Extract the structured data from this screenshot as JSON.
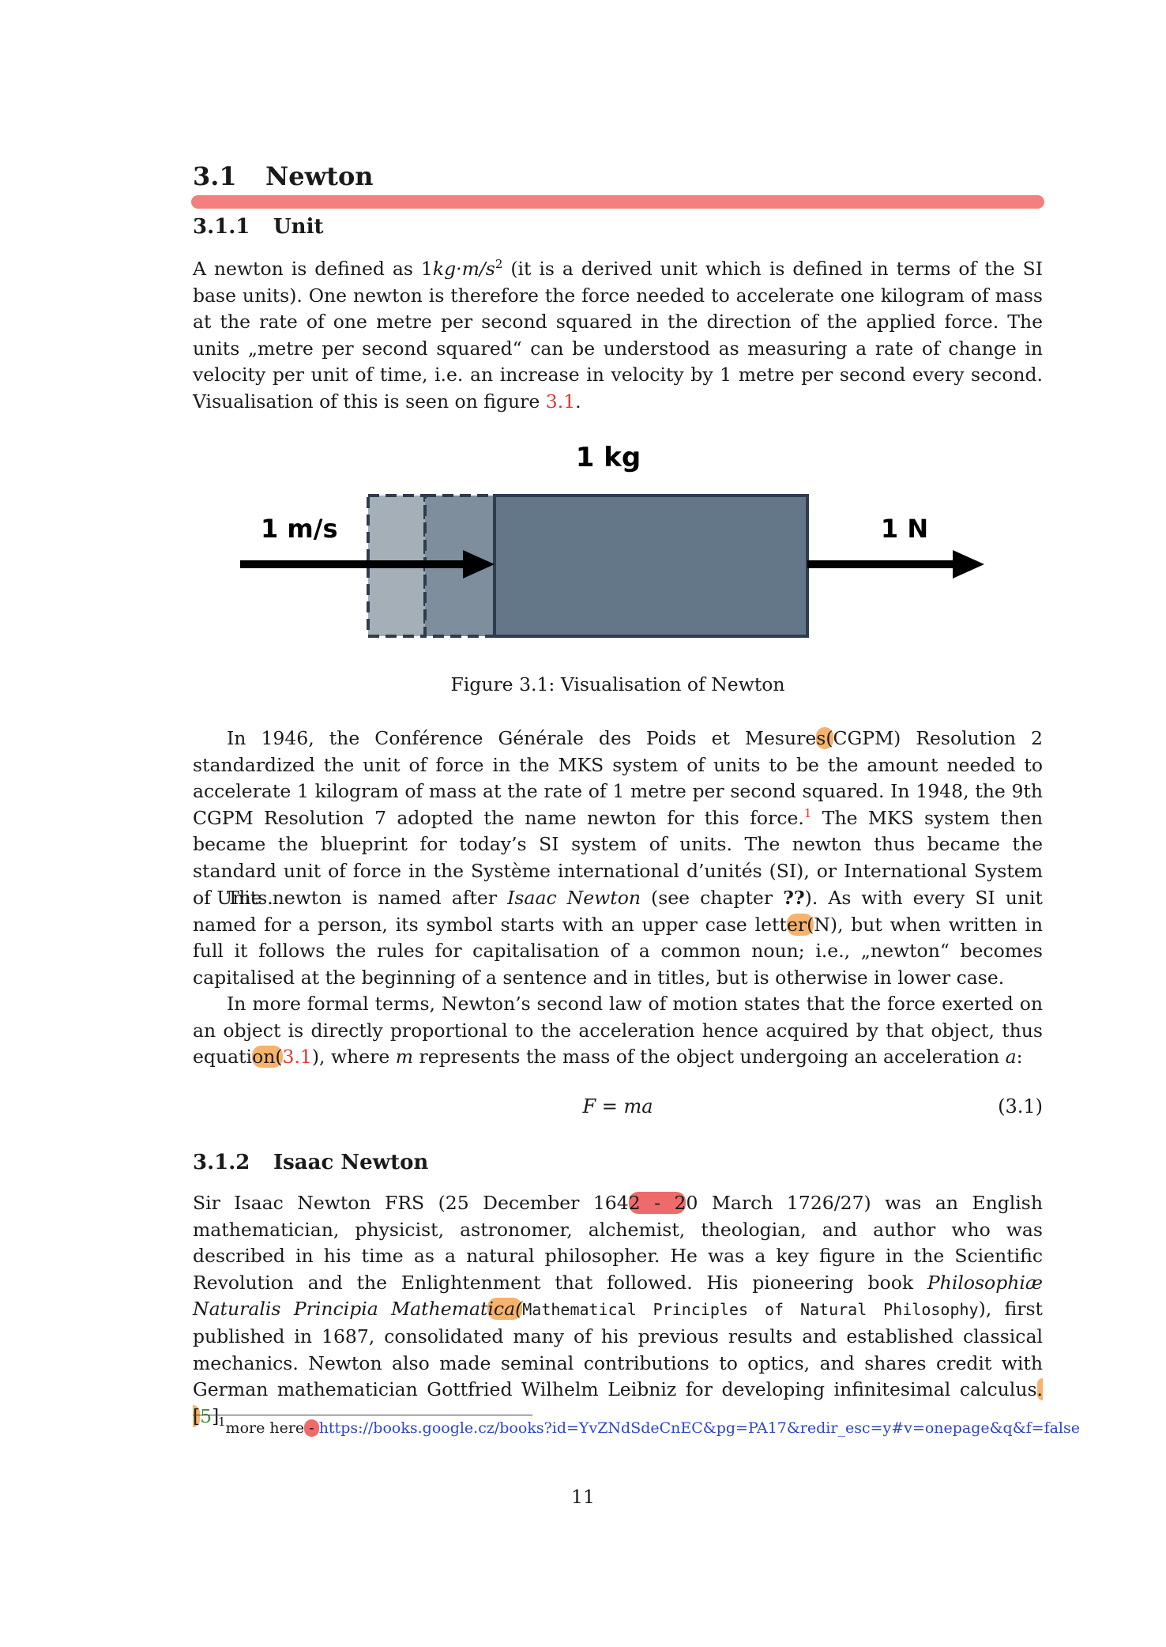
{
  "section": {
    "number": "3.1",
    "title": "Newton"
  },
  "unit_section": {
    "number": "3.1.1",
    "title": "Unit",
    "paragraph": {
      "a": "A newton is defined as 1",
      "unit_expr": "kg·m/s",
      "exp": "2",
      "b": " (it is a derived unit which is defined in terms of the SI base units). One newton is therefore the force needed to accelerate one kilogram of mass at the rate of one metre per second squared in the direction of the applied force. The units „metre per second squared“ can be understood as measuring a rate of change in velocity per unit of time, i.e. an increase in velocity by 1 metre per second every second. Visualisation of this is seen on figure ",
      "ref": "3.1",
      "c": "."
    }
  },
  "figure": {
    "mass_label": "1 kg",
    "velocity_label": "1 m/s",
    "force_label": "1 N",
    "caption": "Figure 3.1: Visualisation of Newton",
    "colors": {
      "block": "#647789",
      "ghost1": "#7f8e9c",
      "ghost2": "#a5afb8",
      "border": "#2e3c4e"
    }
  },
  "para_cgpm": {
    "a": "In 1946, the Conférence Générale des Poids et Mesure",
    "hl1": "s(",
    "b": "CGPM) Resolution 2 standardized the unit of force in the MKS system of units to be the amount needed to accelerate 1 kilogram of mass at the rate of 1 metre per second squared. In 1948, the 9th CGPM Resolution 7 adopted the name newton for this force.",
    "fn": "1",
    "c": " The MKS system then became the blueprint for today’s SI system of units. The newton thus became the standard unit of force in the Système international d’unités (SI), or International System of Units."
  },
  "para_named": {
    "a": "The newton is named after ",
    "name": "Isaac Newton",
    "b": " (see chapter ",
    "ref": "??",
    "c": "). As with every SI unit named for a person, its symbol starts with an upper case lett",
    "hl1": "er(",
    "d": "N), but when written in full it follows the rules for capitalisation of a common noun; i.e., „newton“ becomes capitalised at the beginning of a sentence and in titles, but is otherwise in lower case."
  },
  "para_law": {
    "a": "In more formal terms, Newton’s second law of motion states that the force exerted on an object is directly proportional to the acceleration hence acquired by that object, thus equati",
    "hl1": "on(",
    "ref": "3.1",
    "b": "), where ",
    "m": "m",
    "c": " represents the mass of the object undergoing an acceleration ",
    "acc": "a",
    "d": ":"
  },
  "equation": {
    "formula": "F = ma",
    "number": "(3.1)"
  },
  "isaac_section": {
    "number": "3.1.2",
    "title": "Isaac Newton",
    "paragraph": {
      "a": "Sir Isaac Newton FRS (25 December 164",
      "hl1": "2 - 2",
      "b": "0 March 1726/27) was an English mathematician, physicist, astronomer, alchemist, theologian, and author who was described in his time as a natural philosopher. He was a key figure in the Scientific Revolution and the Enlightenment that followed. His pioneering book ",
      "book_a": "Philosophiæ Naturalis Principia Mathemat",
      "book_hl": "ica(",
      "mono": "Mathematical Principles of Natural Philosophy",
      "c": "), first published in 1687, consolidated many of his previous results and established classical mechanics. Newton also made seminal contributions to optics, and shares credit with German mathematician Gottfried Wilhelm Leibniz for developing infinitesimal calculus",
      "hl2": ".[",
      "cite": "5",
      "d": "]"
    }
  },
  "footnote": {
    "mark": "1",
    "text": "more here",
    "hl": " - ",
    "url": "https://books.google.cz/books?id=YvZNdSdeCnEC&pg=PA17&redir_esc=y#v=onepage&q&f=false"
  },
  "page_number": "11"
}
